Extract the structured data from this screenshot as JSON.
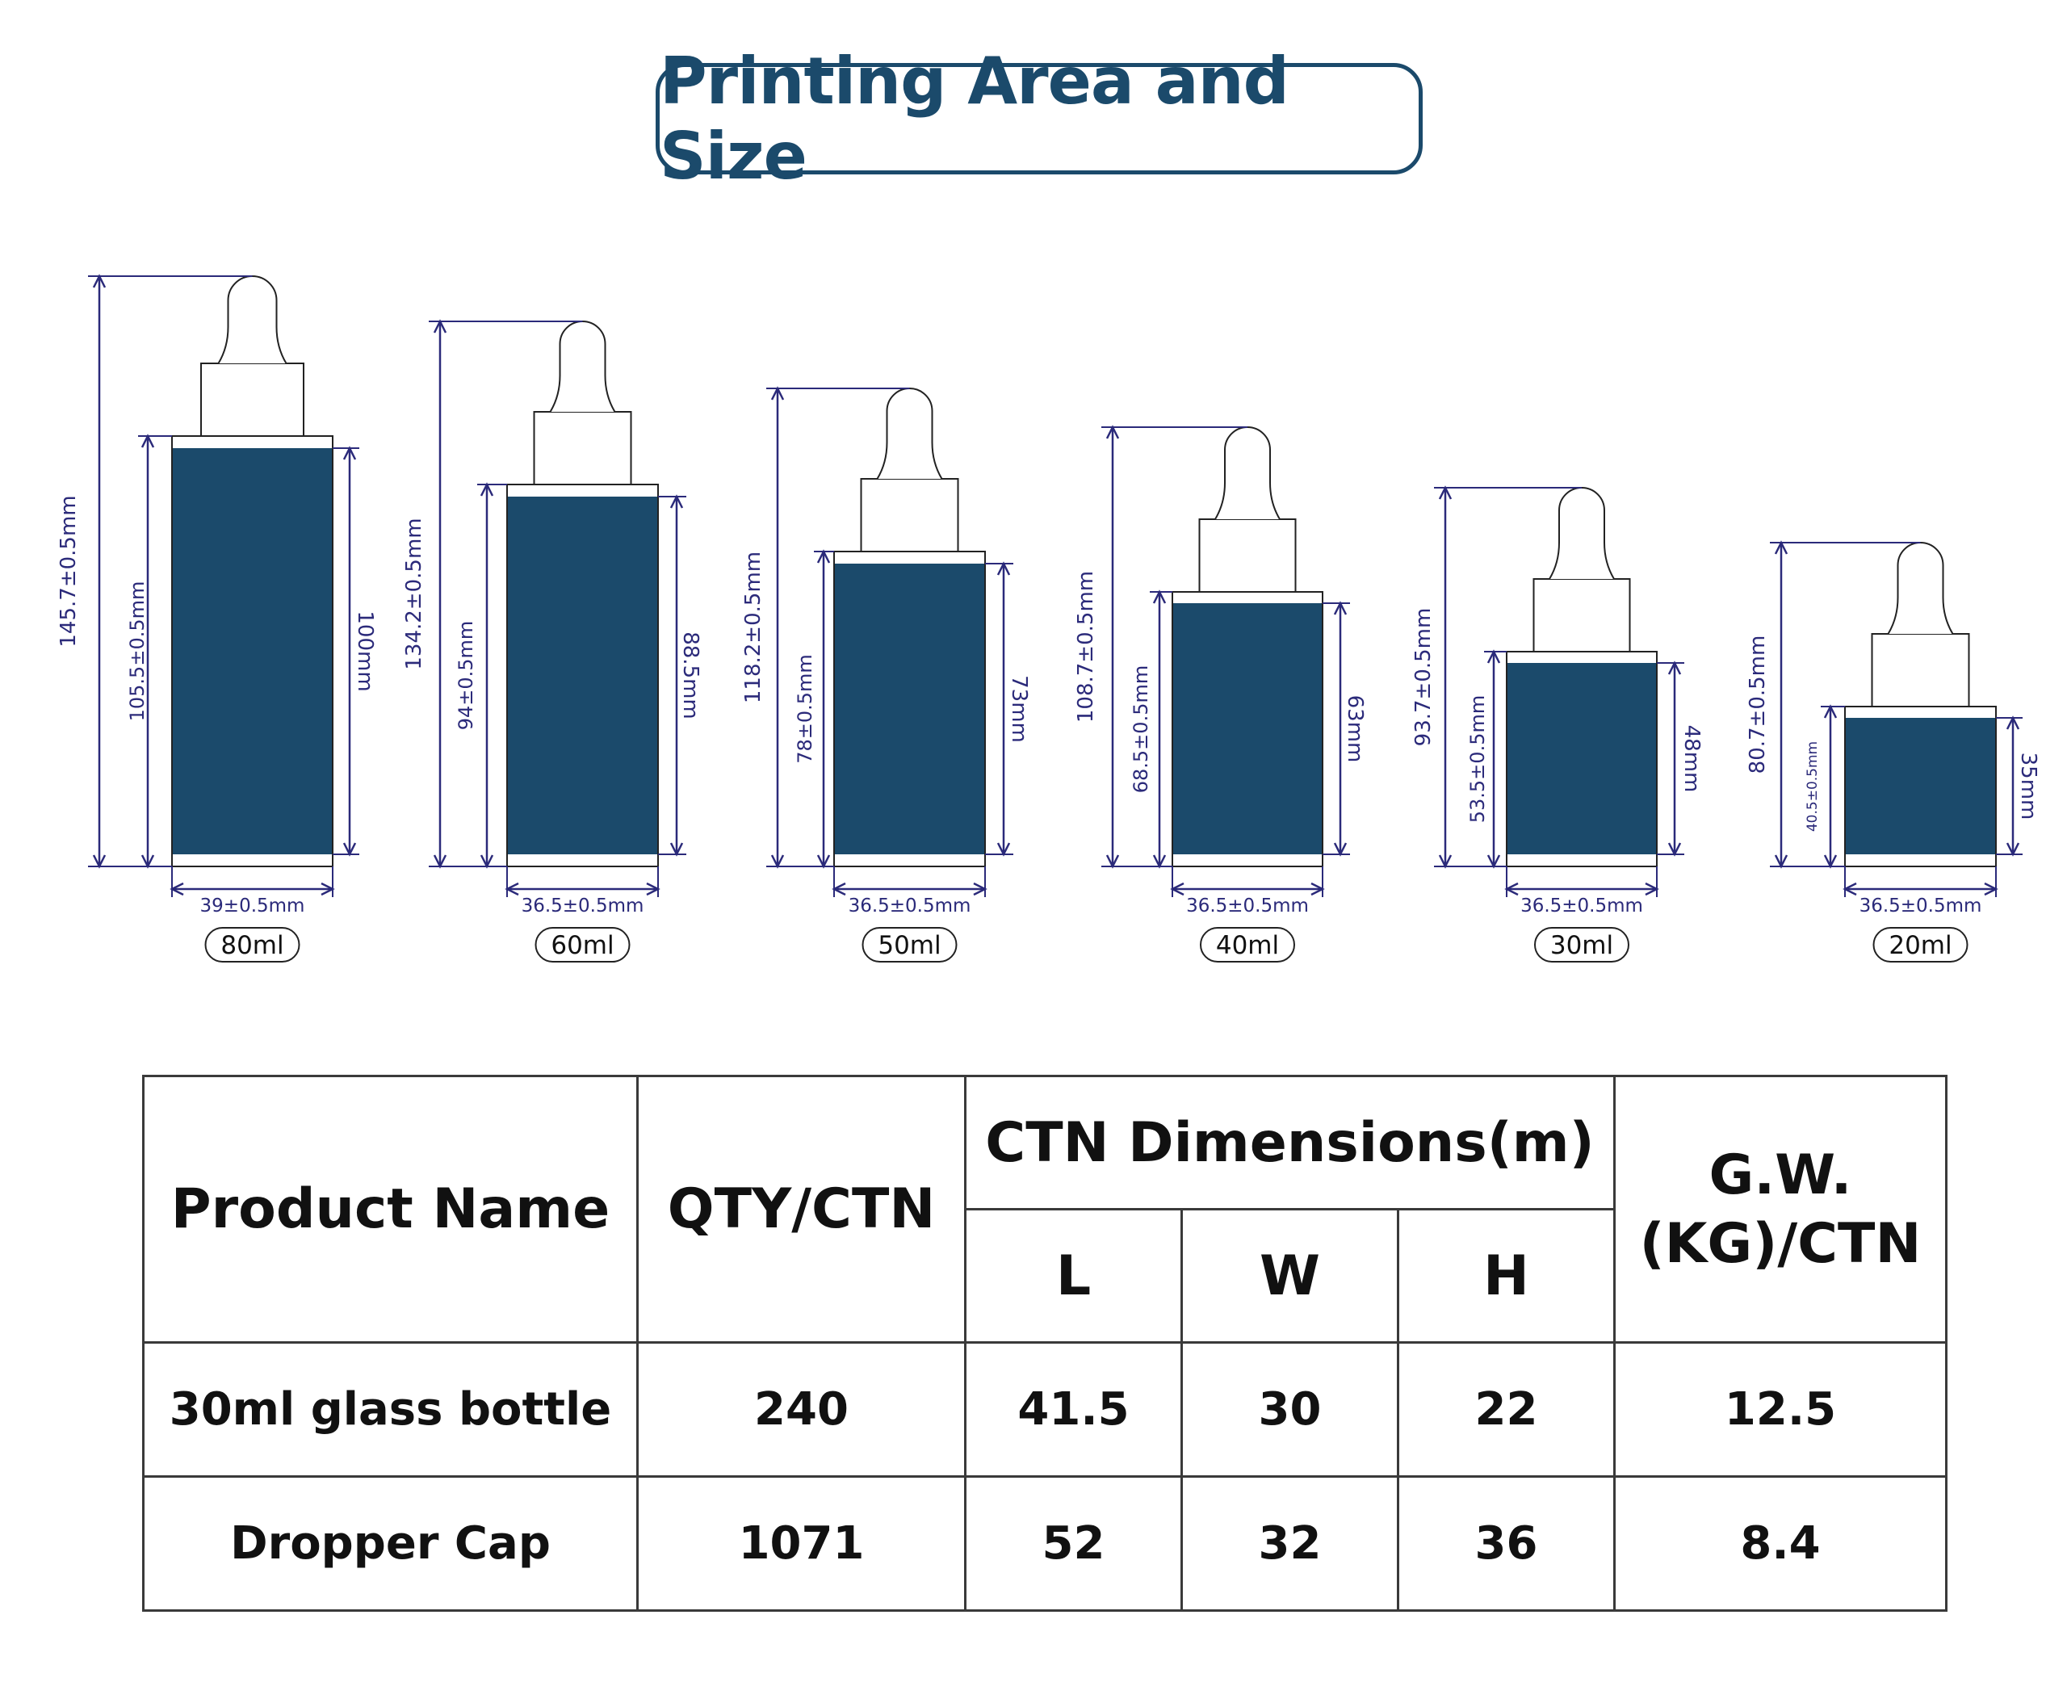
{
  "title": "Printing Area and Size",
  "colors": {
    "accent": "#1b4a6b",
    "dimension_line": "#2b2a7a",
    "label_fill": "#1b4a6b"
  },
  "bottles": [
    {
      "capacity": "80ml",
      "total_height": "145.7±0.5mm",
      "body_height": "105.5±0.5mm",
      "print_height": "100mm",
      "width": "39±0.5mm"
    },
    {
      "capacity": "60ml",
      "total_height": "134.2±0.5mm",
      "body_height": "94±0.5mm",
      "print_height": "88.5mm",
      "width": "36.5±0.5mm"
    },
    {
      "capacity": "50ml",
      "total_height": "118.2±0.5mm",
      "body_height": "78±0.5mm",
      "print_height": "73mm",
      "width": "36.5±0.5mm"
    },
    {
      "capacity": "40ml",
      "total_height": "108.7±0.5mm",
      "body_height": "68.5±0.5mm",
      "print_height": "63mm",
      "width": "36.5±0.5mm"
    },
    {
      "capacity": "30ml",
      "total_height": "93.7±0.5mm",
      "body_height": "53.5±0.5mm",
      "print_height": "48mm",
      "width": "36.5±0.5mm"
    },
    {
      "capacity": "20ml",
      "total_height": "80.7±0.5mm",
      "body_height": "40.5±0.5mm",
      "print_height": "35mm",
      "width": "36.5±0.5mm"
    }
  ],
  "table": {
    "headers": {
      "product_name": "Product Name",
      "qty": "QTY/CTN",
      "dimensions": "CTN Dimensions(m)",
      "l": "L",
      "w": "W",
      "h": "H",
      "gw_line1": "G.W.",
      "gw_line2": "(KG)/CTN"
    },
    "rows": [
      {
        "name": "30ml glass bottle",
        "qty": "240",
        "l": "41.5",
        "w": "30",
        "h": "22",
        "gw": "12.5"
      },
      {
        "name": "Dropper Cap",
        "qty": "1071",
        "l": "52",
        "w": "32",
        "h": "36",
        "gw": "8.4"
      }
    ]
  }
}
